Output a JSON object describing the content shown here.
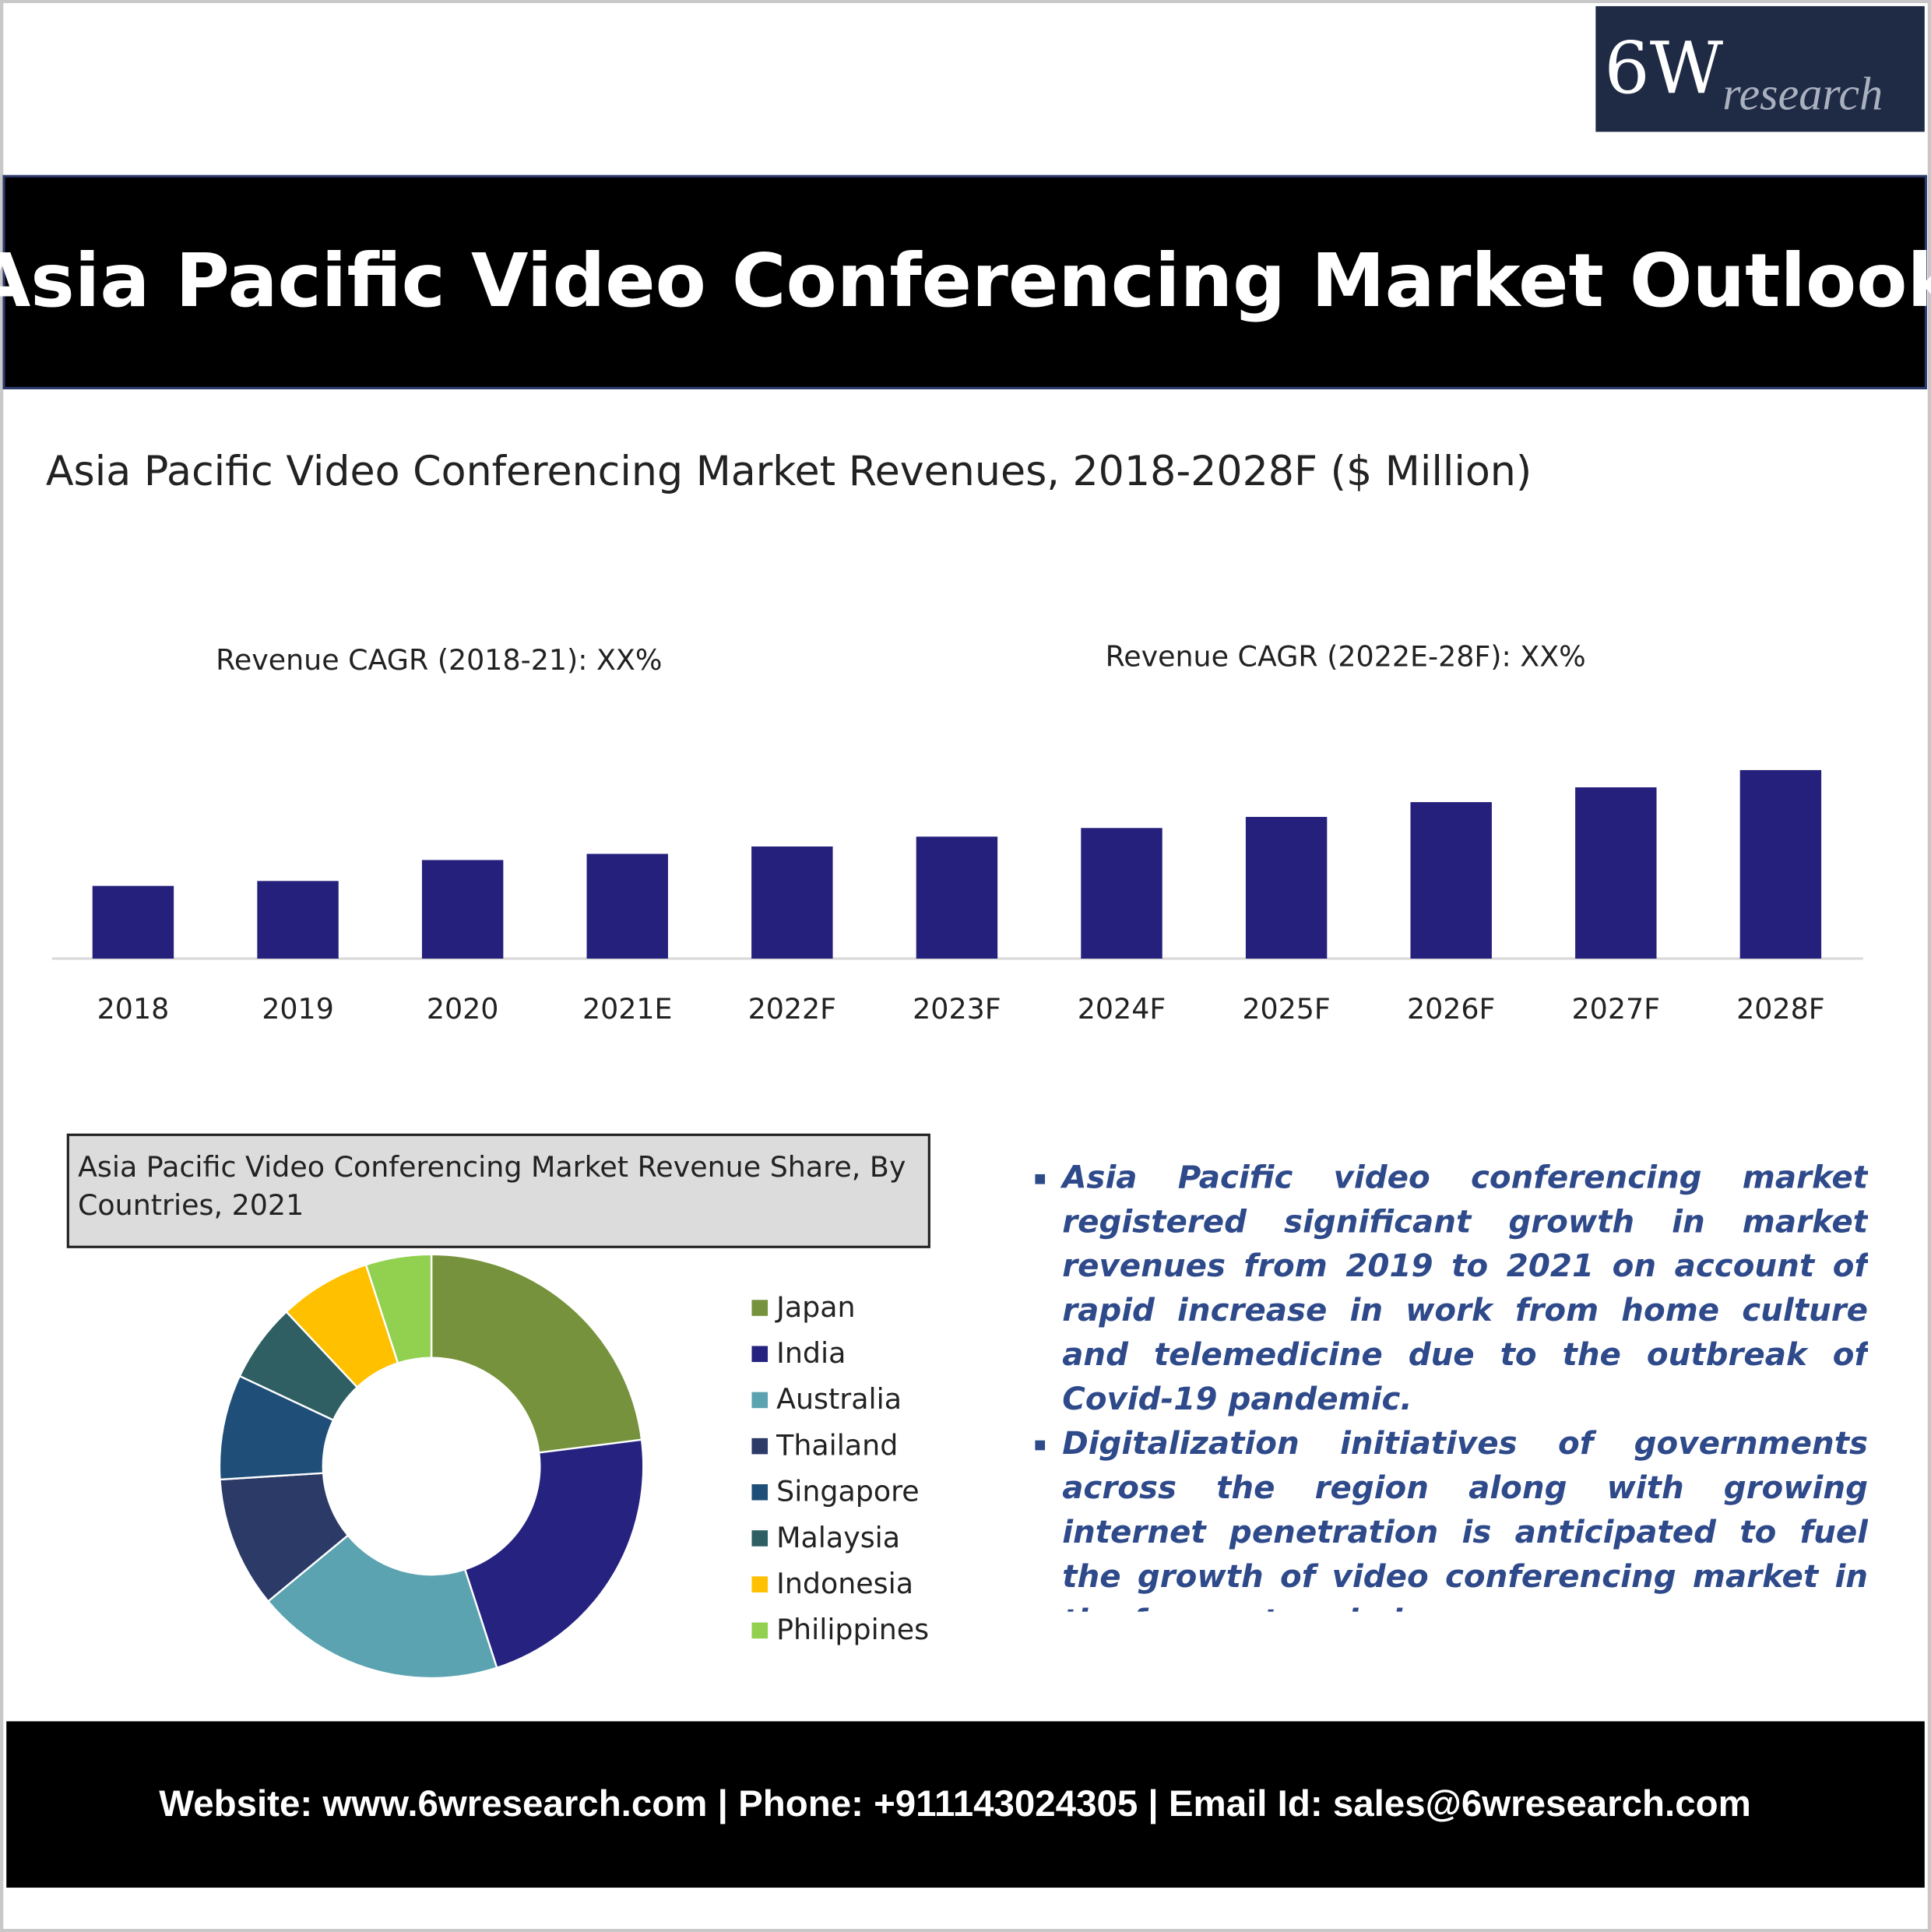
{
  "logo": {
    "mark": "6W",
    "word": "research"
  },
  "header": {
    "title": "Asia Pacific Video Conferencing Market Outlook"
  },
  "chart_data": [
    {
      "type": "bar",
      "title": "Asia Pacific Video Conferencing Market Revenues, 2018-2028F ($ Million)",
      "annotations": [
        "Revenue CAGR (2018-21): XX%",
        "Revenue CAGR (2022E-28F): XX%"
      ],
      "categories": [
        "2018",
        "2019",
        "2020",
        "2021E",
        "2022F",
        "2023F",
        "2024F",
        "2025F",
        "2026F",
        "2027F",
        "2028F"
      ],
      "values": [
        59,
        63,
        80,
        85,
        91,
        99,
        106,
        115,
        127,
        139,
        153
      ],
      "color": "#25207c"
    },
    {
      "type": "pie",
      "title": "Asia Pacific Video Conferencing Market Revenue Share, By Countries, 2021",
      "categories": [
        "Japan",
        "India",
        "Australia",
        "Thailand",
        "Singapore",
        "Malaysia",
        "Indonesia",
        "Philippines"
      ],
      "values": [
        23,
        22,
        19,
        10,
        8,
        6,
        7,
        5
      ],
      "colors": [
        "#76923c",
        "#262380",
        "#5ba3b0",
        "#2b3a67",
        "#1f4e79",
        "#2f5f63",
        "#ffc000",
        "#92d050"
      ]
    }
  ],
  "bullets": [
    "Asia Pacific video conferencing market registered significant growth in market revenues from 2019 to 2021 on account of rapid increase in work from home culture and telemedicine due to the outbreak of Covid-19 pandemic.",
    "Digitalization initiatives of governments across the region along with growing internet penetration is anticipated to fuel the growth of video conferencing market in the forecast period."
  ],
  "footer": "Website: www.6wresearch.com | Phone: +911143024305 | Email Id: sales@6wresearch.com"
}
